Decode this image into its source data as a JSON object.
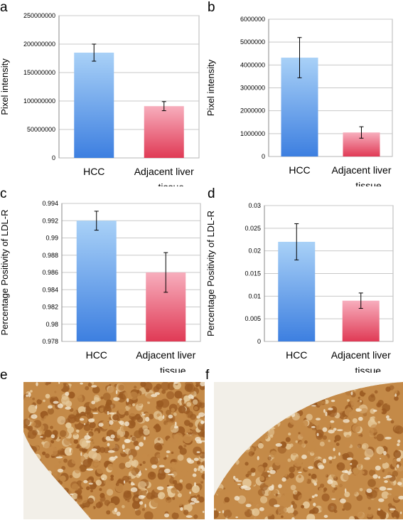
{
  "panels": [
    {
      "letter": "a"
    },
    {
      "letter": "b"
    },
    {
      "letter": "c"
    },
    {
      "letter": "d"
    },
    {
      "letter": "e"
    },
    {
      "letter": "f"
    }
  ],
  "colors": {
    "hcc_top": "#a9d1f7",
    "hcc_bottom": "#3d7fe0",
    "adj_top": "#f7aebd",
    "adj_bottom": "#e03a55",
    "grid": "#c8c8c8",
    "axis_box": "#b5b5b5",
    "tissue_dark": "#9a5a22",
    "tissue_mid": "#c48a48",
    "tissue_light": "#e6c99a",
    "background_slide": "#f2efe8"
  },
  "chart_data": [
    {
      "type": "bar",
      "panel": "a",
      "categories": [
        "HCC",
        "Adjacent liver tissue"
      ],
      "category_lines": [
        [
          "HCC"
        ],
        [
          "Adjacent liver",
          "tissue"
        ]
      ],
      "values": [
        185000000,
        91000000
      ],
      "errors": [
        15000000,
        8000000
      ],
      "ylabel": "Pixel intensity",
      "ylim": [
        0,
        250000000
      ],
      "yticks": [
        "0",
        "50000000",
        "100000000",
        "150000000",
        "200000000",
        "250000000"
      ],
      "grid": true
    },
    {
      "type": "bar",
      "panel": "b",
      "categories": [
        "HCC",
        "Adjacent liver tissue"
      ],
      "category_lines": [
        [
          "HCC"
        ],
        [
          "Adjacent liver",
          "tissue"
        ]
      ],
      "values": [
        4320000,
        1050000
      ],
      "errors": [
        880000,
        250000
      ],
      "ylabel": "Pixel intensity",
      "ylim": [
        0,
        6000000
      ],
      "yticks": [
        "0",
        "1000000",
        "2000000",
        "3000000",
        "4000000",
        "5000000",
        "6000000"
      ],
      "grid": true
    },
    {
      "type": "bar",
      "panel": "c",
      "categories": [
        "HCC",
        "Adjacent liver tissue"
      ],
      "category_lines": [
        [
          "HCC"
        ],
        [
          "Adjacent liver",
          "tissue"
        ]
      ],
      "values": [
        0.992,
        0.986
      ],
      "errors": [
        0.0011,
        0.0023
      ],
      "ylabel": "Percentage Positivity of LDL-R",
      "ylim": [
        0.978,
        0.994
      ],
      "yticks": [
        "0.978",
        "0.98",
        "0.982",
        "0.984",
        "0.986",
        "0.988",
        "0.99",
        "0.992",
        "0.994"
      ],
      "grid": true
    },
    {
      "type": "bar",
      "panel": "d",
      "categories": [
        "HCC",
        "Adjacent liver tissue"
      ],
      "category_lines": [
        [
          "HCC"
        ],
        [
          "Adjacent liver",
          "tissue"
        ]
      ],
      "values": [
        0.022,
        0.009
      ],
      "errors": [
        0.004,
        0.0017
      ],
      "ylabel": "Percentage Positivity of LDL-R",
      "ylim": [
        0,
        0.03
      ],
      "yticks": [
        "0",
        "0.005",
        "0.01",
        "0.015",
        "0.02",
        "0.025",
        "0.03"
      ],
      "grid": true
    }
  ]
}
